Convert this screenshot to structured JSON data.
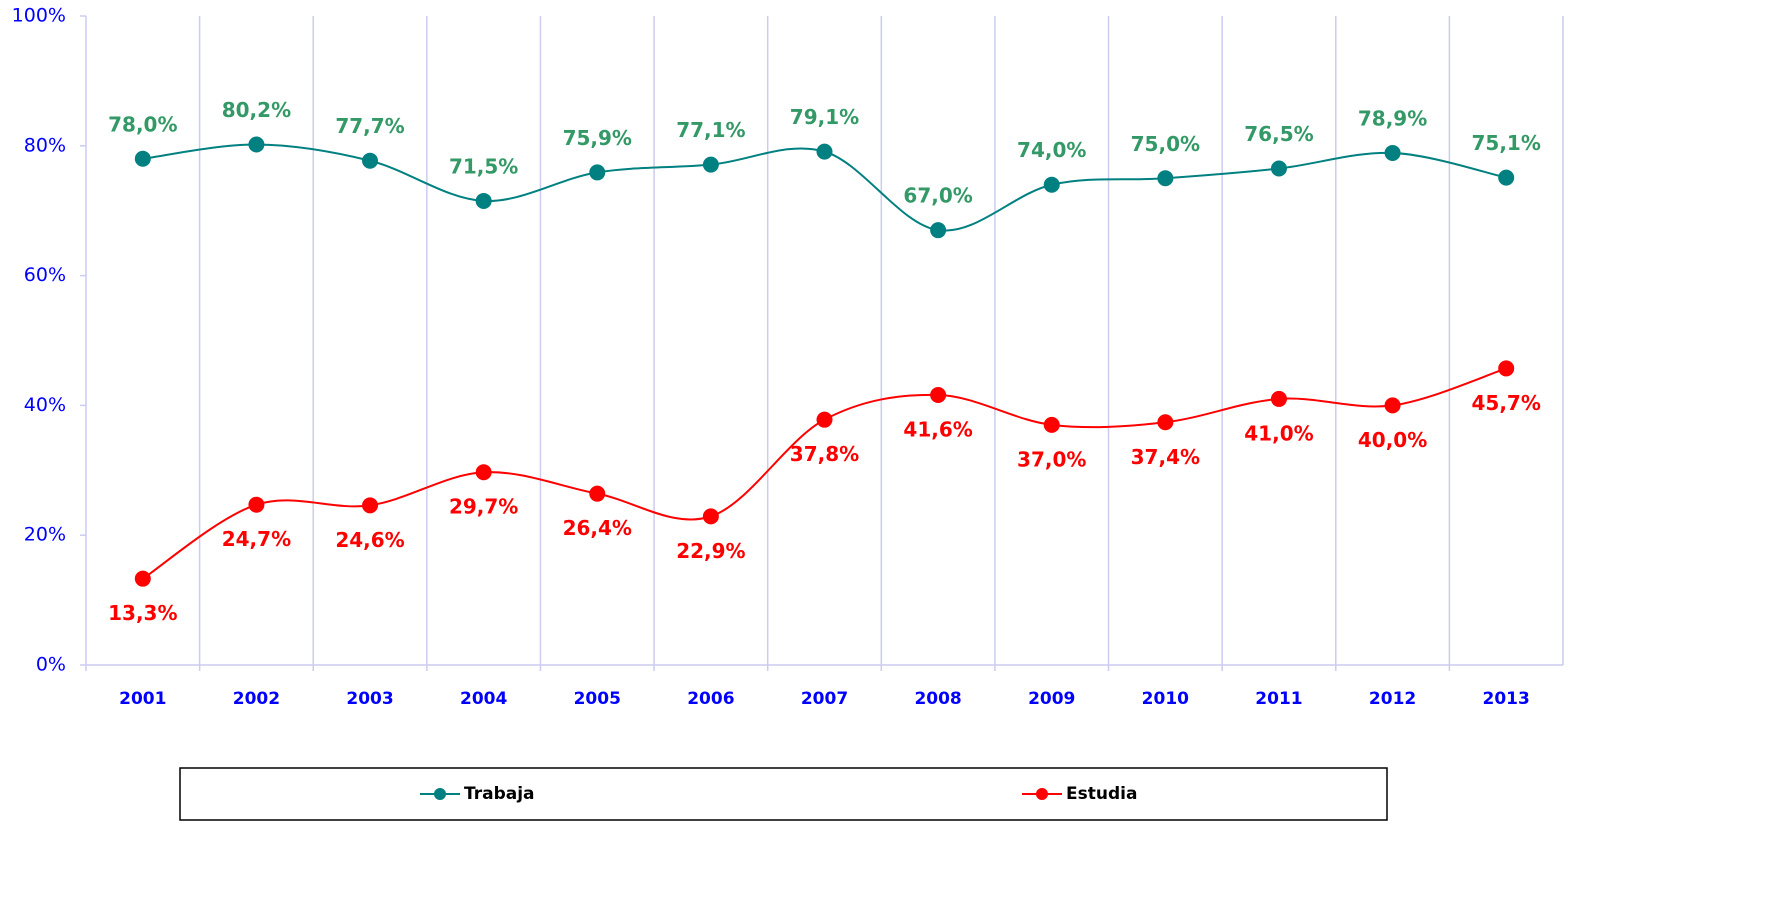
{
  "chart_data": {
    "type": "line",
    "categories": [
      "2001",
      "2002",
      "2003",
      "2004",
      "2005",
      "2006",
      "2007",
      "2008",
      "2009",
      "2010",
      "2011",
      "2012",
      "2013"
    ],
    "series": [
      {
        "name": "Trabaja",
        "color": "#008080",
        "label_color": "#339966",
        "values": [
          78.0,
          80.2,
          77.7,
          71.5,
          75.9,
          77.1,
          79.1,
          67.0,
          74.0,
          75.0,
          76.5,
          78.9,
          75.1
        ],
        "value_labels": [
          "78,0%",
          "80,2%",
          "77,7%",
          "71,5%",
          "75,9%",
          "77,1%",
          "79,1%",
          "67,0%",
          "74,0%",
          "75,0%",
          "76,5%",
          "78,9%",
          "75,1%"
        ]
      },
      {
        "name": "Estudia",
        "color": "#ff0000",
        "label_color": "#ff0000",
        "values": [
          13.3,
          24.7,
          24.6,
          29.7,
          26.4,
          22.9,
          37.8,
          41.6,
          37.0,
          37.4,
          41.0,
          40.0,
          45.7
        ],
        "value_labels": [
          "13,3%",
          "24,7%",
          "24,6%",
          "29,7%",
          "26,4%",
          "22,9%",
          "37,8%",
          "41,6%",
          "37,0%",
          "37,4%",
          "41,0%",
          "40,0%",
          "45,7%"
        ]
      }
    ],
    "ylim": [
      0,
      100
    ],
    "yticks": [
      {
        "value": 0,
        "label": "0%"
      },
      {
        "value": 20,
        "label": "20%"
      },
      {
        "value": 40,
        "label": "40%"
      },
      {
        "value": 60,
        "label": "60%"
      },
      {
        "value": 80,
        "label": "80%"
      },
      {
        "value": 100,
        "label": "100%"
      }
    ],
    "smooth": true,
    "grid": "x",
    "legend": "bottom"
  }
}
